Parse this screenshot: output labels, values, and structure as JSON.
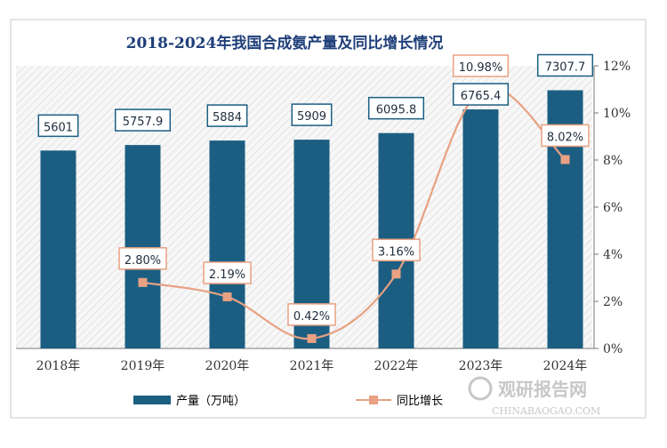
{
  "chart_data": {
    "type": "bar",
    "title": "2018-2024年我国合成氨产量及同比增长情况",
    "categories": [
      "2018年",
      "2019年",
      "2020年",
      "2021年",
      "2022年",
      "2023年",
      "2024年"
    ],
    "series": [
      {
        "name": "产量（万吨）",
        "type": "bar",
        "axis": "left",
        "values": [
          5601,
          5757.9,
          5884,
          5909,
          6095.8,
          6765.4,
          7307.7
        ],
        "labels": [
          "5601",
          "5757.9",
          "5884",
          "5909",
          "6095.8",
          "6765.4",
          "7307.7"
        ]
      },
      {
        "name": "同比增长",
        "type": "line",
        "axis": "right",
        "values": [
          null,
          2.8,
          2.19,
          0.42,
          3.16,
          10.98,
          8.02
        ],
        "labels": [
          null,
          "2.80%",
          "2.19%",
          "0.42%",
          "3.16%",
          "10.98%",
          "8.02%"
        ]
      }
    ],
    "y_left_range": [
      0,
      8000
    ],
    "y_right_range": [
      0,
      12
    ],
    "y_right_ticks": [
      "0%",
      "2%",
      "4%",
      "6%",
      "8%",
      "10%",
      "12%"
    ],
    "legend_position": "bottom",
    "grid": false,
    "colors": {
      "bar": "#1b5e82",
      "line": "#e8a182",
      "title": "#1f3f7a"
    }
  },
  "watermark": {
    "brand": "观研报告网",
    "url": "CHINABAOGAO.COM"
  }
}
